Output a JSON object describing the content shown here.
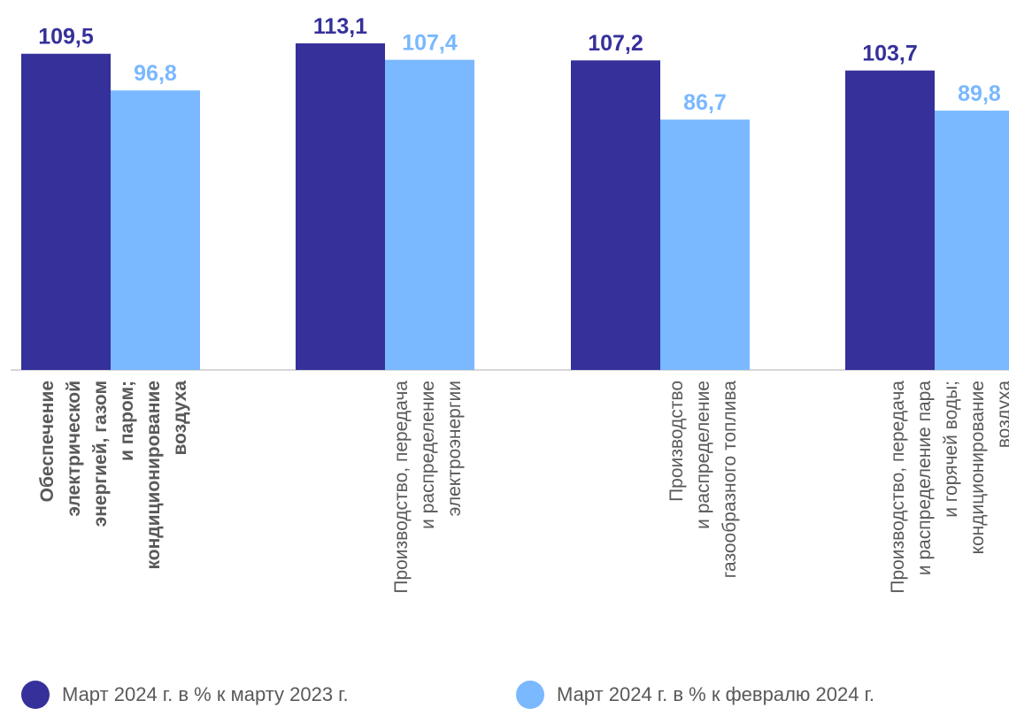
{
  "chart_data": {
    "type": "bar",
    "categories": [
      {
        "lines": [
          "Обеспечение",
          "электрической",
          "энергией, газом",
          "и паром;",
          "кондиционирование",
          "воздуха"
        ],
        "bold": true
      },
      {
        "lines": [
          "Производство, передача",
          "и распределение",
          "электроэнергии"
        ],
        "bold": false
      },
      {
        "lines": [
          "Производство",
          "и распределение",
          "газообразного топлива"
        ],
        "bold": false
      },
      {
        "lines": [
          "Производство, передача",
          "и распределение пара",
          "и горячей воды;",
          "кондиционирование",
          "воздуха"
        ],
        "bold": false
      }
    ],
    "series": [
      {
        "name": "Март 2024 г. в % к марту 2023 г.",
        "color": "#36309b",
        "values": [
          109.5,
          113.1,
          107.2,
          103.7
        ],
        "labels": [
          "109,5",
          "113,1",
          "107,2",
          "103,7"
        ]
      },
      {
        "name": "Март 2024 г. в % к февралю 2024 г.",
        "color": "#7ab8ff",
        "values": [
          96.8,
          107.4,
          86.7,
          89.8
        ],
        "labels": [
          "96,8",
          "107,4",
          "86,7",
          "89,8"
        ]
      }
    ],
    "ylim": [
      0,
      113.1
    ],
    "grid": false,
    "legend_position": "bottom"
  }
}
